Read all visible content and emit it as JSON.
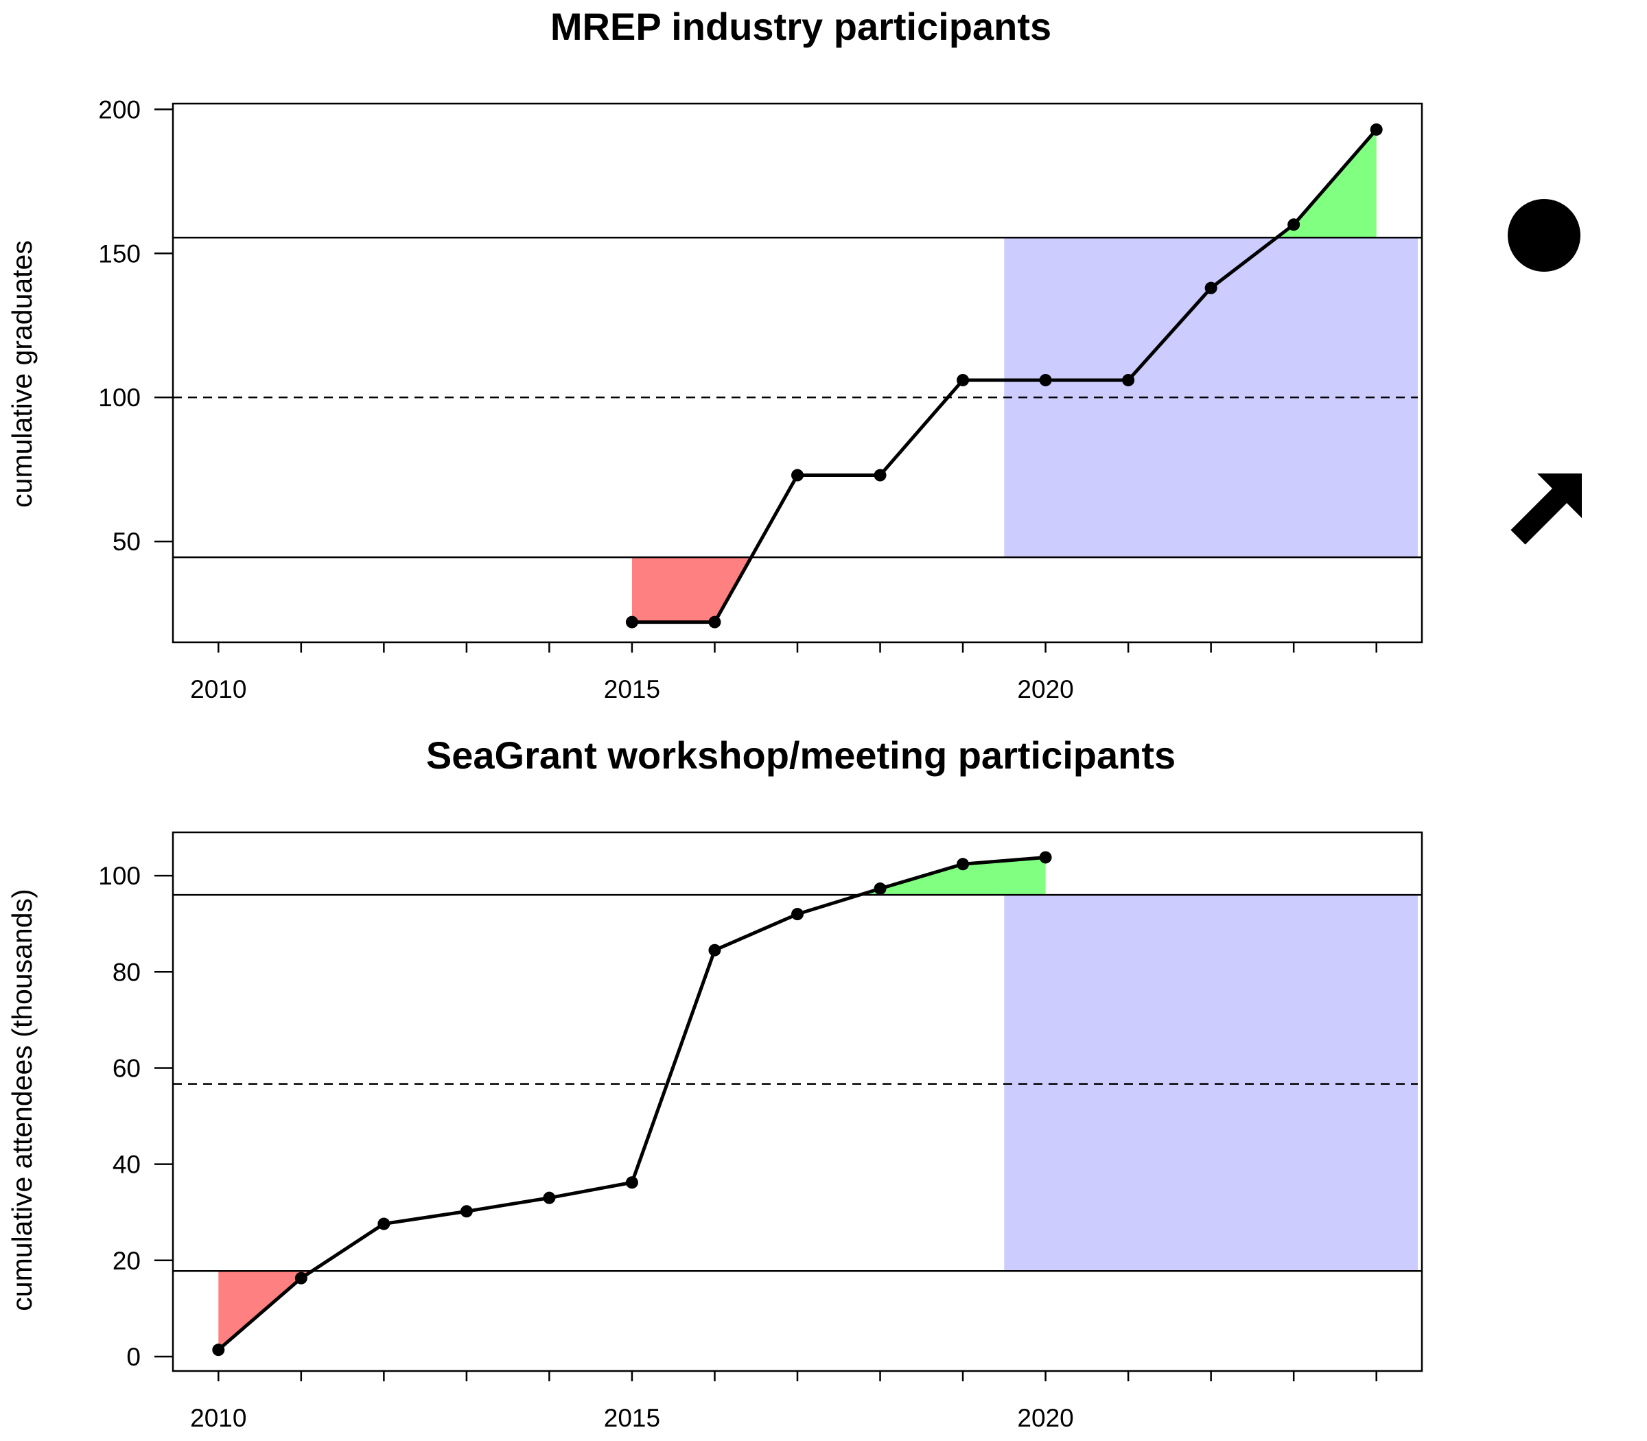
{
  "chart_data": [
    {
      "type": "line",
      "title": "MREP industry participants",
      "xlabel": "",
      "ylabel": "cumulative graduates",
      "xlim": [
        2009.45,
        2024.55
      ],
      "ylim": [
        15,
        202
      ],
      "x_ticks": [
        2010,
        2015,
        2020
      ],
      "x_minor_ticks": [
        2010,
        2011,
        2012,
        2013,
        2014,
        2015,
        2016,
        2017,
        2018,
        2019,
        2020,
        2021,
        2022,
        2023,
        2024
      ],
      "y_ticks": [
        50,
        100,
        150,
        200
      ],
      "grid": false,
      "series": [
        {
          "x": [
            2015,
            2016,
            2017,
            2018,
            2019,
            2020,
            2021,
            2022,
            2023,
            2024
          ],
          "y": [
            22,
            22,
            73,
            73,
            106,
            106,
            106,
            138,
            160,
            193
          ]
        }
      ],
      "upper_line": 155.5,
      "lower_line": 44.5,
      "mean_line": 100,
      "recent_window": [
        2019.5,
        2024.5
      ],
      "colors": {
        "above": "#80FF80",
        "below": "#FF8080",
        "window": "#CCCCFF",
        "line": "#000000"
      },
      "status_icons": [
        "dot-icon"
      ]
    },
    {
      "type": "line",
      "title": "SeaGrant workshop/meeting participants",
      "xlabel": "",
      "ylabel": "cumulative attendees (thousands)",
      "xlim": [
        2009.45,
        2024.55
      ],
      "ylim": [
        -3,
        109
      ],
      "x_ticks": [
        2010,
        2015,
        2020
      ],
      "x_minor_ticks": [
        2010,
        2011,
        2012,
        2013,
        2014,
        2015,
        2016,
        2017,
        2018,
        2019,
        2020,
        2021,
        2022,
        2023,
        2024
      ],
      "y_ticks": [
        0,
        20,
        40,
        60,
        80,
        100
      ],
      "grid": false,
      "series": [
        {
          "x": [
            2010,
            2011,
            2012,
            2013,
            2014,
            2015,
            2016,
            2017,
            2018,
            2019,
            2020
          ],
          "y": [
            1.4,
            16.3,
            27.6,
            30.2,
            33.0,
            36.2,
            84.5,
            92.0,
            97.3,
            102.4,
            103.8
          ]
        }
      ],
      "upper_line": 96,
      "lower_line": 17.8,
      "mean_line": 56.7,
      "recent_window": [
        2019.5,
        2024.5
      ],
      "colors": {
        "above": "#80FF80",
        "below": "#FF8080",
        "window": "#CCCCFF",
        "line": "#000000"
      },
      "status_icons": []
    }
  ],
  "legend_icons": [
    "dot-icon",
    "up-right-arrow-icon"
  ]
}
